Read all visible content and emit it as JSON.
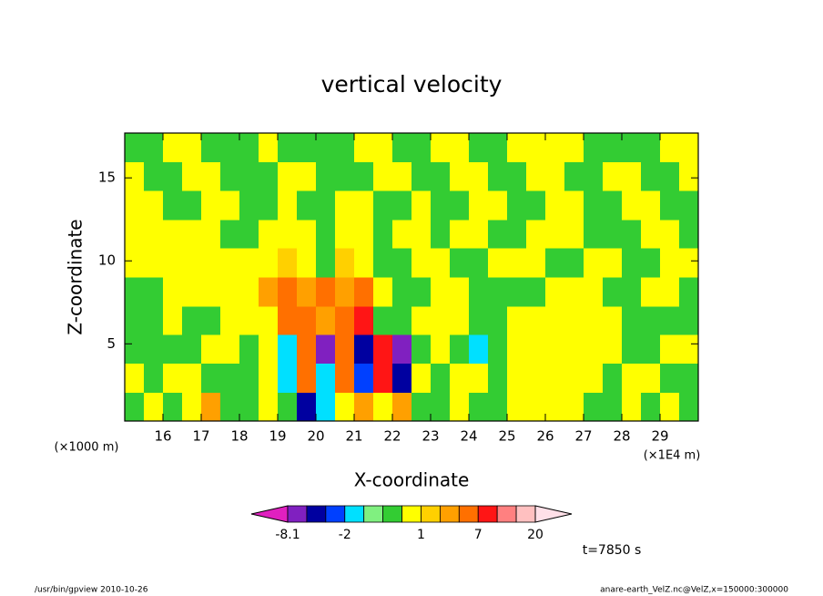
{
  "chart_data": {
    "type": "contour",
    "title": "vertical velocity",
    "xlabel": "X-coordinate",
    "ylabel": "Z-coordinate",
    "xunit": "(×1E4 m)",
    "yunit": "(×1000 m)",
    "annotation": "t=7850 s",
    "footer_left": "/usr/bin/gpview  2010-10-26",
    "footer_right": "anare-earth_VelZ.nc@VelZ,x=150000:300000",
    "xlim": [
      15,
      30
    ],
    "ylim": [
      0.35,
      17.7
    ],
    "xticks": [
      16,
      17,
      18,
      19,
      20,
      21,
      22,
      23,
      24,
      25,
      26,
      27,
      28,
      29
    ],
    "yticks": [
      5,
      10,
      15
    ],
    "x": [
      15.25,
      15.75,
      16.25,
      16.75,
      17.25,
      17.75,
      18.25,
      18.75,
      19.25,
      19.75,
      20.25,
      20.75,
      21.25,
      21.75,
      22.25,
      22.75,
      23.25,
      23.75,
      24.25,
      24.75,
      25.25,
      25.75,
      26.25,
      26.75,
      27.25,
      27.75,
      28.25,
      28.75,
      29.25,
      29.75
    ],
    "y": [
      16.8,
      15.1,
      13.3,
      11.6,
      9.9,
      8.1,
      6.4,
      4.7,
      2.9,
      1.2
    ],
    "z": [
      [
        -0.3,
        -0.3,
        0.5,
        0.5,
        -0.3,
        -0.3,
        -0.3,
        0.5,
        -0.3,
        -0.3,
        -0.3,
        -0.3,
        0.5,
        0.5,
        -0.3,
        -0.3,
        0.5,
        0.5,
        -0.3,
        -0.3,
        0.5,
        0.5,
        0.5,
        0.5,
        -0.3,
        -0.3,
        -0.3,
        -0.3,
        0.5,
        0.5
      ],
      [
        0.5,
        -0.3,
        -0.3,
        0.5,
        0.5,
        -0.3,
        -0.3,
        -0.3,
        0.5,
        0.5,
        -0.3,
        -0.3,
        -0.3,
        0.5,
        0.5,
        -0.3,
        -0.3,
        0.5,
        0.5,
        -0.3,
        -0.3,
        0.5,
        0.5,
        -0.3,
        -0.3,
        0.5,
        0.5,
        -0.3,
        -0.3,
        0.5
      ],
      [
        0.5,
        0.5,
        -0.3,
        -0.3,
        0.5,
        0.5,
        -0.3,
        -0.3,
        0.5,
        -0.3,
        -0.3,
        0.5,
        0.5,
        -0.3,
        -0.3,
        0.5,
        -0.3,
        -0.3,
        0.5,
        0.5,
        -0.3,
        -0.3,
        0.5,
        0.5,
        -0.3,
        -0.3,
        0.5,
        0.5,
        -0.3,
        -0.3
      ],
      [
        0.5,
        0.5,
        0.5,
        0.5,
        0.5,
        -0.3,
        -0.3,
        0.5,
        0.5,
        0.5,
        -0.3,
        0.5,
        0.5,
        -0.3,
        0.5,
        0.5,
        -0.3,
        0.5,
        0.5,
        -0.3,
        -0.3,
        0.5,
        0.5,
        0.5,
        -0.3,
        -0.3,
        -0.3,
        0.5,
        0.5,
        -0.3
      ],
      [
        0.5,
        0.5,
        0.5,
        0.5,
        0.5,
        0.5,
        0.5,
        0.5,
        1.5,
        0.5,
        -0.3,
        1.5,
        0.5,
        -0.3,
        -0.3,
        0.5,
        0.5,
        -0.3,
        -0.3,
        0.5,
        0.5,
        0.5,
        -0.3,
        -0.3,
        0.5,
        0.5,
        -0.3,
        -0.3,
        0.5,
        0.5
      ],
      [
        -0.3,
        -0.3,
        0.5,
        0.5,
        0.5,
        0.5,
        0.5,
        3,
        5,
        3,
        5,
        3,
        5,
        0.5,
        -0.3,
        -0.3,
        0.5,
        0.5,
        -0.3,
        -0.3,
        -0.3,
        -0.3,
        0.5,
        0.5,
        0.5,
        -0.3,
        -0.3,
        0.5,
        0.5,
        -0.3
      ],
      [
        -0.3,
        -0.3,
        0.5,
        -0.3,
        -0.3,
        0.5,
        0.5,
        0.5,
        5,
        5,
        3,
        5,
        8,
        -0.3,
        -0.3,
        0.5,
        0.5,
        0.5,
        -0.3,
        -0.3,
        0.5,
        0.5,
        0.5,
        0.5,
        0.5,
        0.5,
        -0.3,
        -0.3,
        -0.3,
        -0.3
      ],
      [
        -0.3,
        -0.3,
        -0.3,
        -0.3,
        0.5,
        0.5,
        -0.3,
        0.5,
        -1.5,
        5,
        -7,
        5,
        -5,
        8,
        -7,
        -0.3,
        0.5,
        -0.3,
        -1.5,
        -0.3,
        0.5,
        0.5,
        0.5,
        0.5,
        0.5,
        0.5,
        -0.3,
        -0.3,
        0.5,
        0.5
      ],
      [
        0.5,
        -0.3,
        0.5,
        0.5,
        -0.3,
        -0.3,
        -0.3,
        0.5,
        -1.5,
        5,
        -1.5,
        5,
        -3,
        8,
        -5,
        0.5,
        -0.3,
        0.5,
        0.5,
        -0.3,
        0.5,
        0.5,
        0.5,
        0.5,
        0.5,
        -0.3,
        0.5,
        0.5,
        -0.3,
        -0.3
      ],
      [
        -0.3,
        0.5,
        -0.3,
        0.5,
        2,
        -0.3,
        -0.3,
        0.5,
        -0.3,
        -5,
        -1.5,
        0.5,
        3,
        0.5,
        3,
        -0.3,
        -0.3,
        0.5,
        -0.3,
        -0.3,
        0.5,
        0.5,
        0.5,
        0.5,
        -0.3,
        -0.3,
        0.5,
        -0.3,
        0.5,
        -0.3
      ]
    ],
    "colorbar": {
      "boundaries": [
        -8.1,
        -6,
        -4,
        -2,
        -1,
        -0.5,
        0,
        1,
        2,
        4,
        7,
        10,
        15,
        20
      ],
      "colors": [
        "#e020c0",
        "#8020c0",
        "#0000a0",
        "#0040ff",
        "#00e0ff",
        "#80f080",
        "#33cc33",
        "#ffff00",
        "#ffd000",
        "#ffa000",
        "#ff7000",
        "#ff1515",
        "#ff8080",
        "#ffc0c0",
        "#ffe0e8"
      ],
      "ticks": [
        -8.1,
        -2,
        1,
        7,
        20
      ]
    }
  }
}
